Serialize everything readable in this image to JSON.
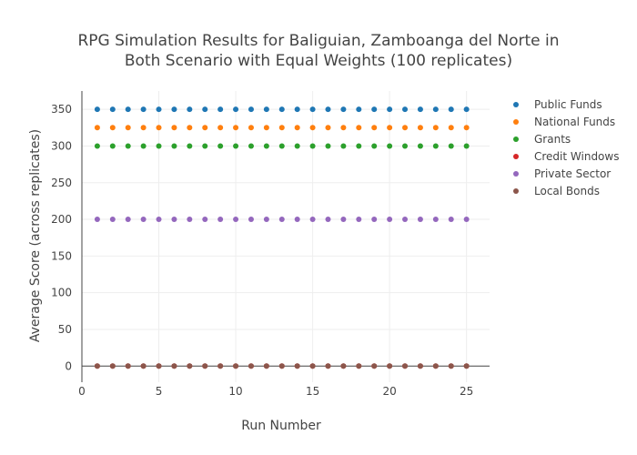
{
  "chart_data": {
    "type": "scatter",
    "title_line1": "RPG Simulation Results for Baliguian, Zamboanga del Norte in",
    "title_line2": "Both Scenario with Equal Weights (100 replicates)",
    "xlabel": "Run Number",
    "ylabel": "Average Score (across replicates)",
    "xlim": [
      0,
      26.5
    ],
    "ylim": [
      -22,
      375
    ],
    "x_ticks": [
      0,
      5,
      10,
      15,
      20,
      25
    ],
    "y_ticks": [
      0,
      50,
      100,
      150,
      200,
      250,
      300,
      350
    ],
    "grid": true,
    "legend_position": "right",
    "x": [
      1,
      2,
      3,
      4,
      5,
      6,
      7,
      8,
      9,
      10,
      11,
      12,
      13,
      14,
      15,
      16,
      17,
      18,
      19,
      20,
      21,
      22,
      23,
      24,
      25
    ],
    "series": [
      {
        "name": "Public Funds",
        "color": "#1f77b4",
        "values": [
          350,
          350,
          350,
          350,
          350,
          350,
          350,
          350,
          350,
          350,
          350,
          350,
          350,
          350,
          350,
          350,
          350,
          350,
          350,
          350,
          350,
          350,
          350,
          350,
          350
        ]
      },
      {
        "name": "National Funds",
        "color": "#ff7f0e",
        "values": [
          325,
          325,
          325,
          325,
          325,
          325,
          325,
          325,
          325,
          325,
          325,
          325,
          325,
          325,
          325,
          325,
          325,
          325,
          325,
          325,
          325,
          325,
          325,
          325,
          325
        ]
      },
      {
        "name": "Grants",
        "color": "#2ca02c",
        "values": [
          300,
          300,
          300,
          300,
          300,
          300,
          300,
          300,
          300,
          300,
          300,
          300,
          300,
          300,
          300,
          300,
          300,
          300,
          300,
          300,
          300,
          300,
          300,
          300,
          300
        ]
      },
      {
        "name": "Credit Windows",
        "color": "#d62728",
        "values": [
          0,
          0,
          0,
          0,
          0,
          0,
          0,
          0,
          0,
          0,
          0,
          0,
          0,
          0,
          0,
          0,
          0,
          0,
          0,
          0,
          0,
          0,
          0,
          0,
          0
        ]
      },
      {
        "name": "Private Sector",
        "color": "#9467bd",
        "values": [
          200,
          200,
          200,
          200,
          200,
          200,
          200,
          200,
          200,
          200,
          200,
          200,
          200,
          200,
          200,
          200,
          200,
          200,
          200,
          200,
          200,
          200,
          200,
          200,
          200
        ]
      },
      {
        "name": "Local Bonds",
        "color": "#8c564b",
        "values": [
          0,
          0,
          0,
          0,
          0,
          0,
          0,
          0,
          0,
          0,
          0,
          0,
          0,
          0,
          0,
          0,
          0,
          0,
          0,
          0,
          0,
          0,
          0,
          0,
          0
        ]
      }
    ]
  }
}
